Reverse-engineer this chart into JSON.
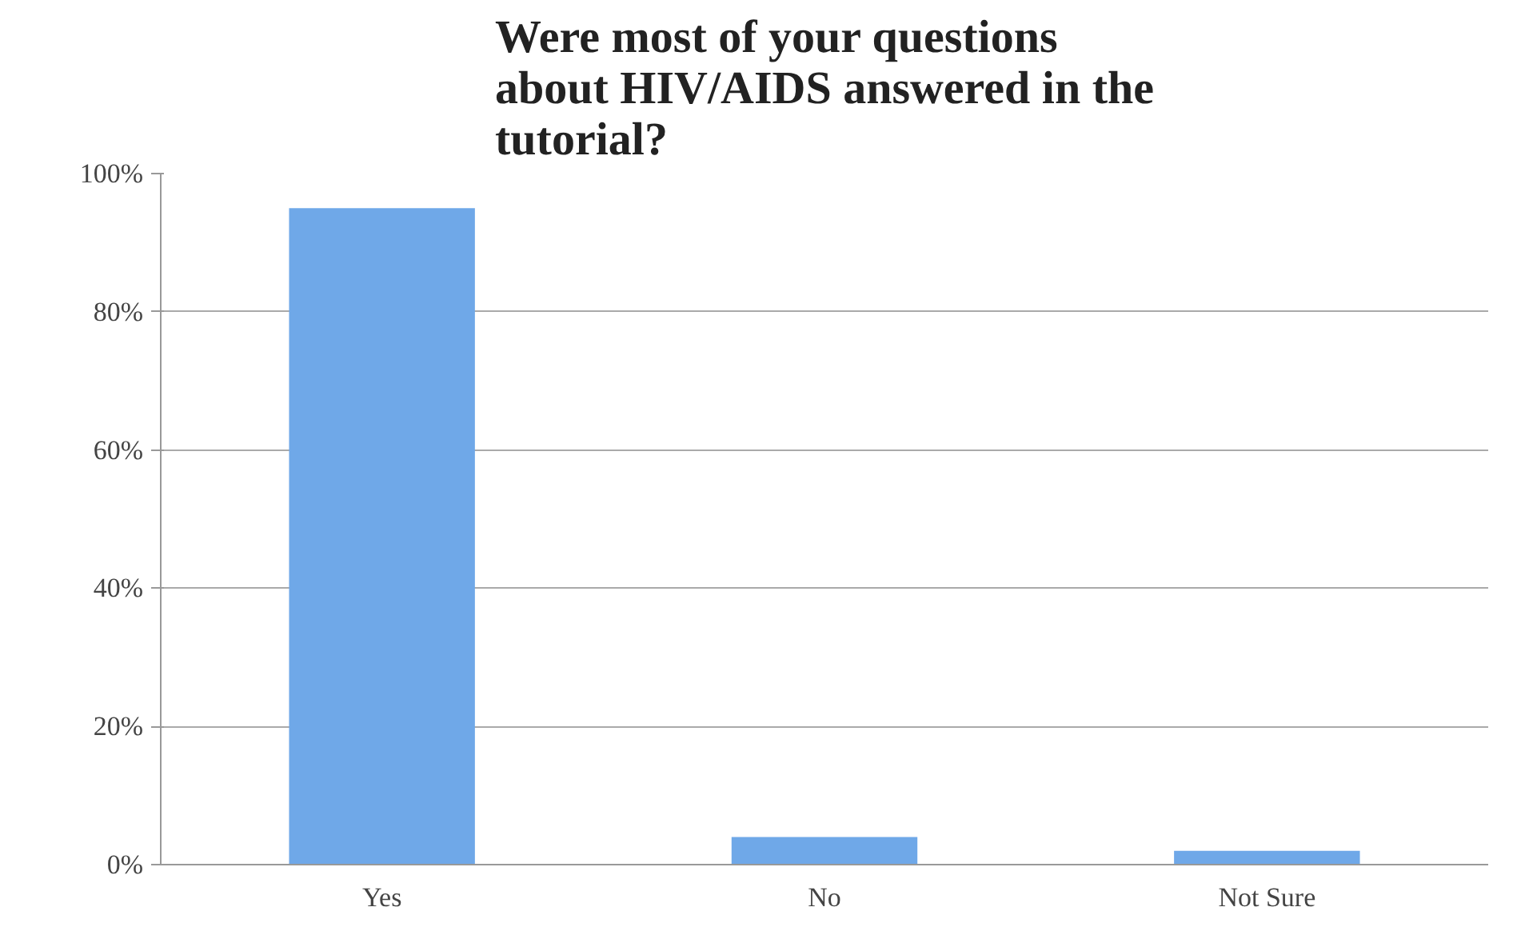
{
  "chart_data": {
    "type": "bar",
    "title": "Were most of your questions\nabout HIV/AIDS answered in the\ntutorial?",
    "categories": [
      "Yes",
      "No",
      "Not Sure"
    ],
    "values": [
      95,
      4,
      2
    ],
    "color": "#6fa8e8",
    "ylim": [
      0,
      100
    ],
    "yticks": [
      {
        "value": 0,
        "label": "0%"
      },
      {
        "value": 20,
        "label": "20%"
      },
      {
        "value": 40,
        "label": "40%"
      },
      {
        "value": 60,
        "label": "60%"
      },
      {
        "value": 80,
        "label": "80%"
      },
      {
        "value": 100,
        "label": "100%"
      }
    ],
    "grid": "y"
  }
}
